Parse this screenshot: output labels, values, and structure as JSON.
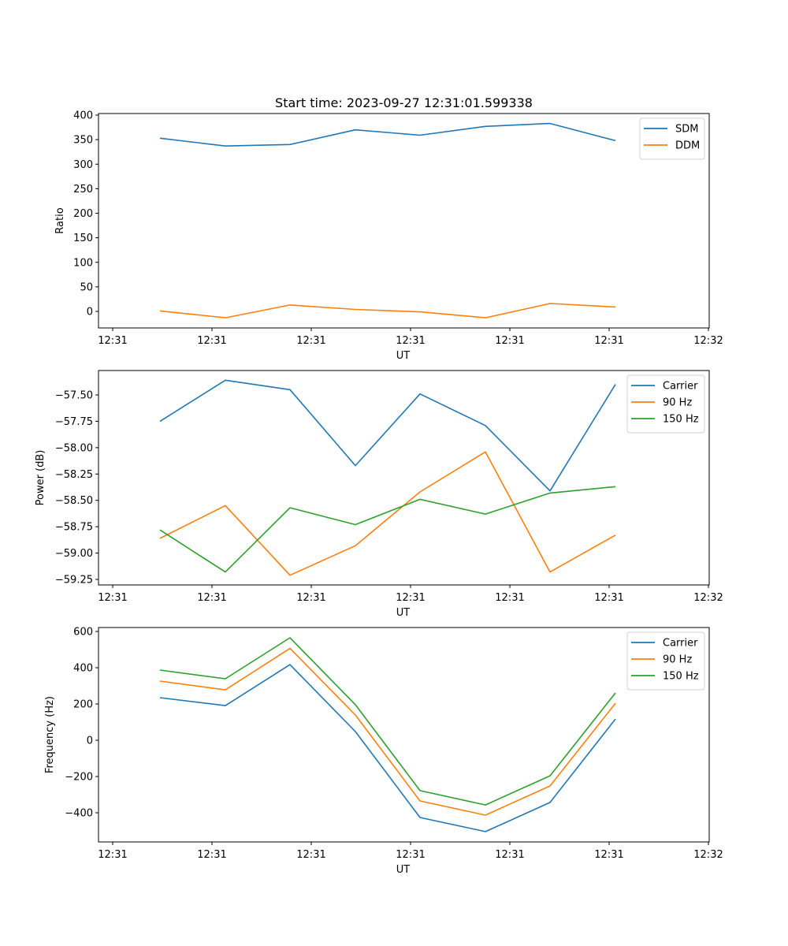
{
  "chart_data": [
    {
      "type": "line",
      "title": "Start time: 2023-09-27 12:31:01.599338",
      "xlabel": "UT",
      "ylabel": "Ratio",
      "x_tick_labels": [
        "12:31",
        "12:31",
        "12:31",
        "12:31",
        "12:31",
        "12:31",
        "12:32"
      ],
      "y_ticks": [
        0,
        50,
        100,
        150,
        200,
        250,
        300,
        350,
        400
      ],
      "y_tick_labels": [
        "0",
        "50",
        "100",
        "150",
        "200",
        "250",
        "300",
        "350",
        "400"
      ],
      "ylim": [
        -33,
        404
      ],
      "x": [
        1,
        2,
        3,
        4,
        5,
        6,
        7,
        8
      ],
      "xlim": [
        -1.2,
        8.9
      ],
      "x_ticks": [
        -1,
        0.5,
        2,
        3.5,
        5,
        6.5,
        8.0,
        9.5
      ],
      "series": [
        {
          "name": "SDM",
          "color": "#1f77b4",
          "values": [
            353,
            337,
            340,
            370,
            359,
            377,
            383,
            348
          ]
        },
        {
          "name": "DDM",
          "color": "#ff7f0e",
          "values": [
            1,
            -13,
            13,
            4,
            -1,
            -13,
            16,
            9
          ]
        }
      ],
      "legend": "top-right",
      "grid": false
    },
    {
      "type": "line",
      "title": "",
      "xlabel": "UT",
      "ylabel": "Power (dB)",
      "x_tick_labels": [
        "12:31",
        "12:31",
        "12:31",
        "12:31",
        "12:31",
        "12:31",
        "12:32"
      ],
      "y_ticks": [
        -59.25,
        -59.0,
        -58.75,
        -58.5,
        -58.25,
        -58.0,
        -57.75,
        -57.5
      ],
      "y_tick_labels": [
        "−59.25",
        "−59.00",
        "−58.75",
        "−58.50",
        "−58.25",
        "−58.00",
        "−57.75",
        "−57.50"
      ],
      "ylim": [
        -59.3,
        -57.28
      ],
      "x": [
        1,
        2,
        3,
        4,
        5,
        6,
        7,
        8
      ],
      "series": [
        {
          "name": "Carrier",
          "color": "#1f77b4",
          "values": [
            -57.75,
            -57.36,
            -57.45,
            -58.17,
            -57.49,
            -57.79,
            -58.41,
            -57.4
          ]
        },
        {
          "name": "90 Hz",
          "color": "#ff7f0e",
          "values": [
            -58.86,
            -58.55,
            -59.21,
            -58.93,
            -58.42,
            -58.04,
            -59.18,
            -58.83
          ]
        },
        {
          "name": "150 Hz",
          "color": "#2ca02c",
          "values": [
            -58.78,
            -59.18,
            -58.57,
            -58.73,
            -58.49,
            -58.63,
            -58.43,
            -58.37
          ]
        }
      ],
      "legend": "top-right",
      "grid": false
    },
    {
      "type": "line",
      "title": "",
      "xlabel": "UT",
      "ylabel": "Frequency (Hz)",
      "x_tick_labels": [
        "12:31",
        "12:31",
        "12:31",
        "12:31",
        "12:31",
        "12:31",
        "12:32"
      ],
      "y_ticks": [
        -400,
        -200,
        0,
        200,
        400,
        600
      ],
      "y_tick_labels": [
        "−400",
        "−200",
        "0",
        "200",
        "400",
        "600"
      ],
      "ylim": [
        -556,
        620
      ],
      "x": [
        1,
        2,
        3,
        4,
        5,
        6,
        7,
        8
      ],
      "series": [
        {
          "name": "Carrier",
          "color": "#1f77b4",
          "values": [
            235,
            191,
            417,
            48,
            -426,
            -504,
            -343,
            117
          ]
        },
        {
          "name": "90 Hz",
          "color": "#ff7f0e",
          "values": [
            326,
            278,
            507,
            139,
            -335,
            -413,
            -252,
            204
          ]
        },
        {
          "name": "150 Hz",
          "color": "#2ca02c",
          "values": [
            387,
            339,
            565,
            196,
            -278,
            -357,
            -196,
            261
          ]
        }
      ],
      "legend": "top-right",
      "grid": false
    }
  ]
}
